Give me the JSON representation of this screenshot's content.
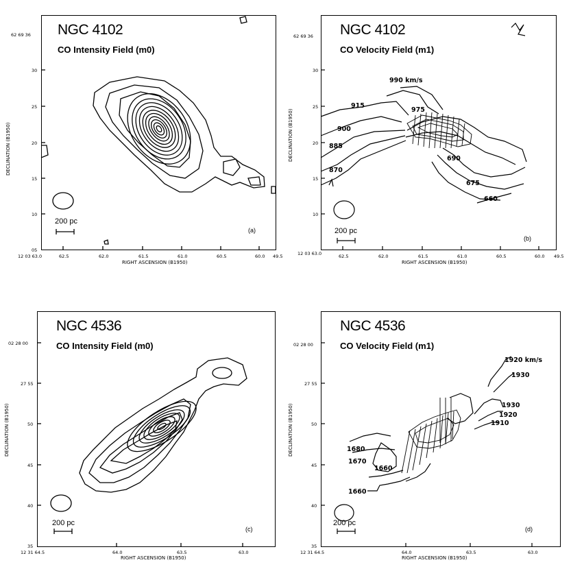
{
  "panels": [
    {
      "title": "NGC 4102",
      "subtitle": "CO Intensity Field (m0)",
      "ylabel": "DECLINATION (B1950)",
      "xlabel": "RIGHT ASCENSION (B1950)",
      "ra_prefix": "12 03 63.0",
      "xticks": [
        "62.5",
        "62.0",
        "61.5",
        "61.0",
        "60.5",
        "60.0",
        "49.5"
      ],
      "dec_prefix": "62 69 36",
      "yticks": [
        "30",
        "25",
        "20",
        "15",
        "10",
        "05"
      ],
      "scale": "200 pc",
      "letter": "(a)"
    },
    {
      "title": "NGC 4102",
      "subtitle": "CO Velocity Field (m1)",
      "ylabel": "DECLINATION (B1950)",
      "xlabel": "RIGHT ASCENSION (B1950)",
      "ra_prefix": "12 03 63.0",
      "xticks": [
        "62.5",
        "62.0",
        "61.5",
        "61.0",
        "60.5",
        "60.0",
        "49.5"
      ],
      "dec_prefix": "62 69 36",
      "yticks": [
        "30",
        "25",
        "20",
        "15",
        "10"
      ],
      "scale": "200 pc",
      "letter": "(b)",
      "velocities": [
        "990 km/s",
        "915",
        "975",
        "900",
        "885",
        "870",
        "690",
        "675",
        "660"
      ]
    },
    {
      "title": "NGC 4536",
      "subtitle": "CO Intensity Field (m0)",
      "ylabel": "DECLINATION (B1950)",
      "xlabel": "RIGHT ASCENSION (B1950)",
      "ra_prefix": "12 31 64.5",
      "xticks": [
        "64.0",
        "63.5",
        "63.0"
      ],
      "dec_prefix": "02 28 00",
      "yticks": [
        "27 55",
        "50",
        "45",
        "40",
        "35"
      ],
      "scale": "200 pc",
      "letter": "(c)"
    },
    {
      "title": "NGC 4536",
      "subtitle": "CO Velocity Field (m1)",
      "ylabel": "DECLINATION (B1950)",
      "xlabel": "RIGHT ASCENSION (B1950)",
      "ra_prefix": "12 31 64.5",
      "xticks": [
        "64.0",
        "63.5",
        "63.0"
      ],
      "dec_prefix": "02 28 00",
      "yticks": [
        "27 55",
        "50",
        "45",
        "40",
        "35"
      ],
      "scale": "200 pc",
      "letter": "(d)",
      "velocities": [
        "1920 km/s",
        "1930",
        "1930",
        "1920",
        "1910",
        "1680",
        "1670",
        "1660",
        "1660"
      ]
    }
  ]
}
